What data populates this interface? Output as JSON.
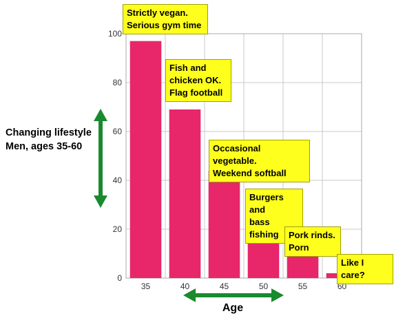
{
  "chart_data": {
    "type": "bar",
    "categories": [
      "35",
      "40",
      "45",
      "50",
      "55",
      "60"
    ],
    "values": [
      97,
      69,
      44,
      20,
      9,
      2
    ],
    "ylim": [
      0,
      100
    ],
    "yticks": [
      0,
      20,
      40,
      60,
      80,
      100
    ],
    "grid": true,
    "bar_color": "#e8266a",
    "ylabel_lines": [
      "Changing lifestyle",
      "Men, ages 35-60"
    ],
    "xlabel": "Age",
    "annotations": [
      {
        "category": "35",
        "lines": [
          "Strictly vegan.",
          "Serious gym time"
        ]
      },
      {
        "category": "40",
        "lines": [
          "Fish and",
          "chicken OK.",
          "Flag football"
        ]
      },
      {
        "category": "45",
        "lines": [
          "Occasional vegetable.",
          "Weekend softball"
        ]
      },
      {
        "category": "50",
        "lines": [
          "Burgers and",
          "bass fishing"
        ]
      },
      {
        "category": "55",
        "lines": [
          "Pork rinds.",
          "Porn"
        ]
      },
      {
        "category": "60",
        "lines": [
          "Like I care?"
        ]
      }
    ],
    "annotation_color": "#ffff1e",
    "arrow_color": "#1a8a2e"
  }
}
